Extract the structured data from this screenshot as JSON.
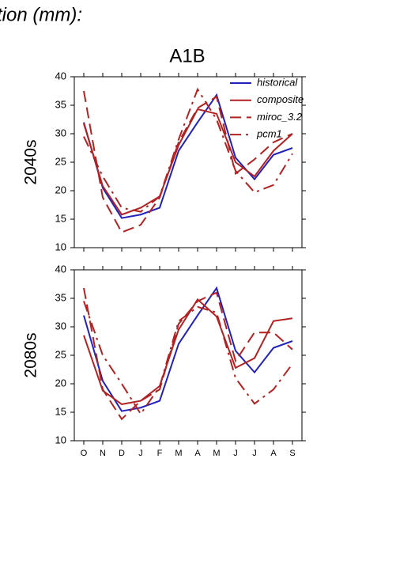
{
  "header": {
    "title": "tion (mm):"
  },
  "chart_data": [
    {
      "type": "line",
      "title": "A1B",
      "ylabel": "2040s",
      "ylim": [
        10,
        40
      ],
      "yticks": [
        10,
        15,
        20,
        25,
        30,
        35,
        40
      ],
      "legend": "upper right",
      "series": [
        {
          "name": "historical",
          "color": "#2222bb",
          "style": "solid",
          "values": [
            32,
            20.5,
            15.2,
            15.8,
            17,
            27,
            32,
            36.8,
            25.8,
            22,
            26.3,
            27.5
          ]
        },
        {
          "name": "composite",
          "color": "#b22222",
          "style": "solid",
          "values": [
            31.8,
            20.8,
            15.8,
            17,
            19,
            28,
            34.3,
            33.5,
            25,
            22.5,
            27,
            30
          ]
        },
        {
          "name": "miroc_3.2",
          "color": "#b22222",
          "style": "dashed",
          "values": [
            37.5,
            18.8,
            12.7,
            14,
            18.8,
            28.5,
            34.5,
            36.5,
            23,
            25.5,
            28.5,
            30
          ]
        },
        {
          "name": "pcm1",
          "color": "#b22222",
          "style": "dashdot",
          "values": [
            29.5,
            22.5,
            17,
            16.3,
            19,
            29,
            37.8,
            32.5,
            23.5,
            19.7,
            21,
            26.5
          ]
        }
      ]
    },
    {
      "type": "line",
      "ylabel": "2080s",
      "ylim": [
        10,
        40
      ],
      "yticks": [
        10,
        15,
        20,
        25,
        30,
        35,
        40
      ],
      "categories": [
        "O",
        "N",
        "D",
        "J",
        "F",
        "M",
        "A",
        "M",
        "J",
        "J",
        "A",
        "S"
      ],
      "series": [
        {
          "color": "#2222bb",
          "style": "solid",
          "values": [
            32,
            20.5,
            15.2,
            15.8,
            17,
            27,
            32,
            36.8,
            25.8,
            22,
            26.3,
            27.5
          ]
        },
        {
          "color": "#b22222",
          "style": "solid",
          "values": [
            28.5,
            18.8,
            16.4,
            17,
            19.6,
            29.5,
            34.8,
            31.8,
            22.8,
            24.5,
            31,
            31.5
          ]
        },
        {
          "color": "#b22222",
          "style": "dashed",
          "values": [
            36.8,
            19,
            13.8,
            17,
            19,
            30.5,
            34.5,
            36,
            24,
            29,
            29,
            26
          ]
        },
        {
          "color": "#b22222",
          "style": "dashdot",
          "values": [
            34.5,
            25,
            20,
            14.7,
            19.5,
            31,
            33.5,
            32.5,
            21,
            16.5,
            19,
            23.5
          ]
        }
      ]
    }
  ]
}
